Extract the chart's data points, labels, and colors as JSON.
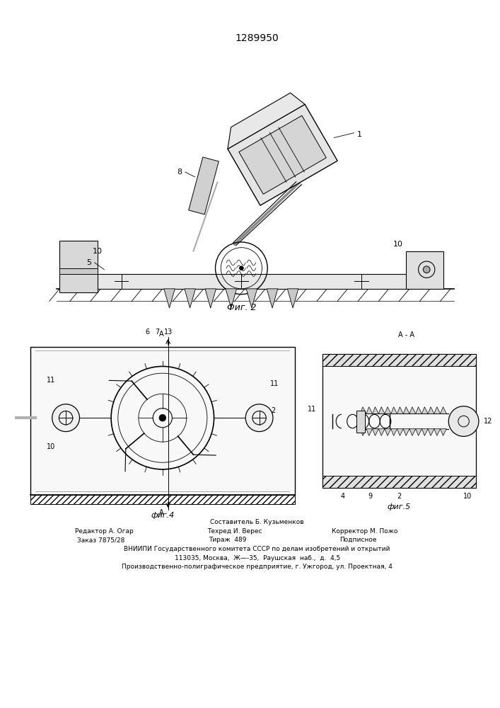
{
  "patent_number": "1289950",
  "bg_color": "#ffffff",
  "fig2_label": "Фиг. 2",
  "fig4_label": "фиг.4",
  "fig5_label": "фиг.5",
  "aa_label": "А - А",
  "footer_line1": "Составитель Б. Кузьменков",
  "footer_line2_col1": "Редактор А. Огар",
  "footer_line2_col2": "Техред И. Верес",
  "footer_line2_col3": "Корректор М. Пожо",
  "footer_line3_col1": "Заказ 7875/28",
  "footer_line3_col2": "Тираж  489",
  "footer_line3_col3": "Подписное",
  "footer_line4": "ВНИИПИ Государственного комитета СССР по делам изобретений и открытий",
  "footer_line5": "113035, Москва,  Ж—-35,  Раушская  наб.,  д.  4,5",
  "footer_line6": "Производственно-полиграфическое предприятие, г. Ужгород, ул. Проектная, 4"
}
